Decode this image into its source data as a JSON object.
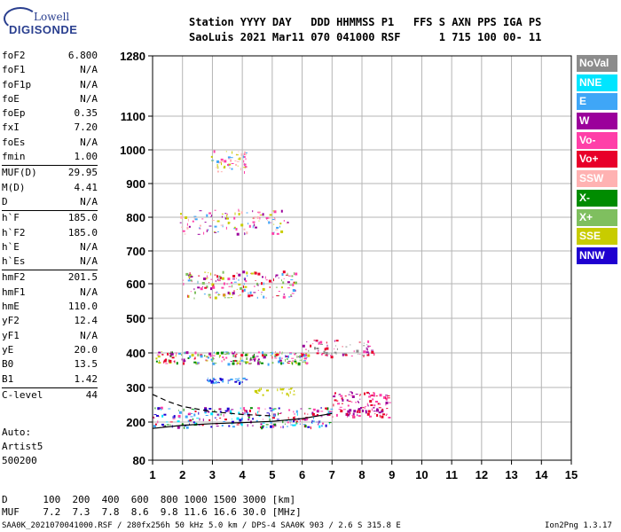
{
  "logo": {
    "line1": "Lowell",
    "line2": "DIGISONDE"
  },
  "header": {
    "row1": "Station YYYY DAY   DDD HHMMSS P1   FFS S AXN PPS IGA PS",
    "row2": "SaoLuis 2021 Mar11 070 041000 RSF      1 715 100 00- 11"
  },
  "params": [
    {
      "k": "foF2",
      "v": "6.800"
    },
    {
      "k": "foF1",
      "v": "N/A"
    },
    {
      "k": "foF1p",
      "v": "N/A"
    },
    {
      "k": "foE",
      "v": "N/A"
    },
    {
      "k": "foEp",
      "v": "0.35"
    },
    {
      "k": "fxI",
      "v": "7.20"
    },
    {
      "k": "foEs",
      "v": "N/A"
    },
    {
      "k": "fmin",
      "v": "1.00"
    },
    {
      "k": "MUF(D)",
      "v": "29.95"
    },
    {
      "k": "M(D)",
      "v": "4.41"
    },
    {
      "k": "D",
      "v": "N/A"
    },
    {
      "k": "h`F",
      "v": "185.0"
    },
    {
      "k": "h`F2",
      "v": "185.0"
    },
    {
      "k": "h`E",
      "v": "N/A"
    },
    {
      "k": "h`Es",
      "v": "N/A"
    },
    {
      "k": "hmF2",
      "v": "201.5"
    },
    {
      "k": "hmF1",
      "v": "N/A"
    },
    {
      "k": "hmE",
      "v": "110.0"
    },
    {
      "k": "yF2",
      "v": "12.4"
    },
    {
      "k": "yF1",
      "v": "N/A"
    },
    {
      "k": "yE",
      "v": "20.0"
    },
    {
      "k": "B0",
      "v": "13.5"
    },
    {
      "k": "B1",
      "v": "1.42"
    },
    {
      "k": "C-level",
      "v": "44"
    }
  ],
  "side_bottom": {
    "l1": "Auto:",
    "l2": "Artist5",
    "l3": "500200"
  },
  "bottom": {
    "row_d": "D      100  200  400  600  800 1000 1500 3000 [km]",
    "row_muf": "MUF    7.2  7.3  7.8  8.6  9.8 11.6 16.6 30.0 [MHz]"
  },
  "footer": {
    "left": "SAA0K_2021070041000.RSF / 280fx256h 50 kHz 5.0 km / DPS-4 SAA0K 903 / 2.6 S 315.8 E",
    "right": "Ion2Png 1.3.17"
  },
  "legend": [
    {
      "label": "NoVal",
      "bg": "#8c8c8c",
      "fg": "#ffffff"
    },
    {
      "label": "NNE",
      "bg": "#00e5ff",
      "fg": "#ffffff"
    },
    {
      "label": "E",
      "bg": "#3fa6f7",
      "fg": "#ffffff"
    },
    {
      "label": "W",
      "bg": "#9b009b",
      "fg": "#ffffff"
    },
    {
      "label": "Vo-",
      "bg": "#ff3fa8",
      "fg": "#ffffff"
    },
    {
      "label": "Vo+",
      "bg": "#e8002a",
      "fg": "#ffffff"
    },
    {
      "label": "SSW",
      "bg": "#ffb2b2",
      "fg": "#ffffff"
    },
    {
      "label": "X-",
      "bg": "#008c00",
      "fg": "#ffffff"
    },
    {
      "label": "X+",
      "bg": "#7fbf5f",
      "fg": "#ffffff"
    },
    {
      "label": "SSE",
      "bg": "#c8cc00",
      "fg": "#ffffff"
    },
    {
      "label": "NNW",
      "bg": "#1f00d0",
      "fg": "#ffffff"
    }
  ],
  "chart_data": {
    "type": "scatter",
    "x_ticks": [
      "1",
      "2",
      "3",
      "4",
      "5",
      "6",
      "7",
      "8",
      "9",
      "10",
      "11",
      "12",
      "13",
      "14",
      "15"
    ],
    "y_ticks": [
      "80",
      "200",
      "300",
      "400",
      "500",
      "600",
      "700",
      "800",
      "900",
      "1000",
      "1100",
      "1280"
    ],
    "y_tick_values": [
      80,
      200,
      300,
      400,
      500,
      600,
      700,
      800,
      900,
      1000,
      1100,
      1280
    ],
    "xlim": [
      1,
      15
    ],
    "ylim": [
      80,
      1280
    ],
    "grid": true,
    "clusters": [
      {
        "x0": 1.0,
        "x1": 7.0,
        "y0": 185,
        "y1": 245,
        "density": 260,
        "colors": [
          "#e8002a",
          "#ff3fa8",
          "#1f00d0",
          "#9b009b",
          "#3fa6f7",
          "#008c00",
          "#00e5ff"
        ]
      },
      {
        "x0": 7.0,
        "x1": 8.9,
        "y0": 215,
        "y1": 290,
        "density": 120,
        "colors": [
          "#e8002a",
          "#ff3fa8",
          "#9b009b"
        ]
      },
      {
        "x0": 1.1,
        "x1": 6.2,
        "y0": 370,
        "y1": 405,
        "density": 220,
        "colors": [
          "#e8002a",
          "#ff3fa8",
          "#3fa6f7",
          "#7fbf5f",
          "#9b009b",
          "#c8cc00",
          "#008c00"
        ]
      },
      {
        "x0": 6.0,
        "x1": 8.4,
        "y0": 390,
        "y1": 440,
        "density": 70,
        "colors": [
          "#9b009b",
          "#e8002a",
          "#ff3fa8",
          "#8c8c8c"
        ]
      },
      {
        "x0": 2.0,
        "x1": 5.8,
        "y0": 560,
        "y1": 640,
        "density": 170,
        "colors": [
          "#e8002a",
          "#ff3fa8",
          "#3fa6f7",
          "#9b009b",
          "#7fbf5f",
          "#c8cc00"
        ]
      },
      {
        "x0": 1.9,
        "x1": 5.5,
        "y0": 750,
        "y1": 825,
        "density": 110,
        "colors": [
          "#ff3fa8",
          "#c8cc00",
          "#ffb2b2",
          "#3fa6f7",
          "#9b009b"
        ]
      },
      {
        "x0": 2.9,
        "x1": 4.1,
        "y0": 935,
        "y1": 1000,
        "density": 55,
        "colors": [
          "#ff3fa8",
          "#ffb2b2",
          "#c8cc00",
          "#3fa6f7"
        ]
      },
      {
        "x0": 2.8,
        "x1": 4.2,
        "y0": 315,
        "y1": 330,
        "density": 40,
        "colors": [
          "#1f00d0",
          "#3fa6f7"
        ]
      },
      {
        "x0": 4.4,
        "x1": 5.8,
        "y0": 280,
        "y1": 300,
        "density": 25,
        "colors": [
          "#c8cc00"
        ]
      }
    ],
    "profile_curve": {
      "x": [
        1.0,
        2.0,
        3.0,
        4.0,
        5.0,
        6.0,
        7.0
      ],
      "y": [
        180,
        190,
        195,
        198,
        202,
        210,
        225
      ]
    },
    "dashed_curve": {
      "x": [
        1.0,
        1.5,
        2.0,
        3.0,
        4.0,
        5.0
      ],
      "y": [
        280,
        260,
        245,
        230,
        222,
        218
      ]
    }
  }
}
